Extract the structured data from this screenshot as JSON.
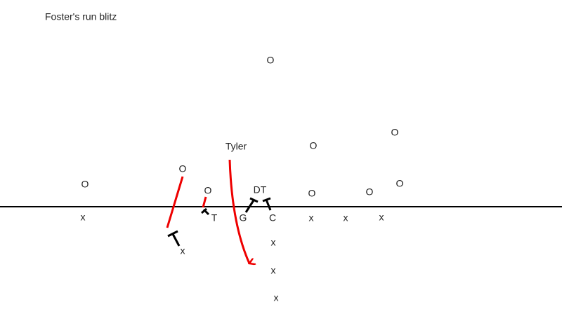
{
  "title": "Foster's run blitz",
  "defense": [
    "O",
    "O",
    "O",
    "O",
    "O",
    "O",
    "DT",
    "O",
    "O",
    "O"
  ],
  "offense": [
    "x",
    "T",
    "G",
    "C",
    "x",
    "x",
    "x",
    "x",
    "x",
    "x",
    "x"
  ],
  "annotations": [
    "Tyler"
  ]
}
